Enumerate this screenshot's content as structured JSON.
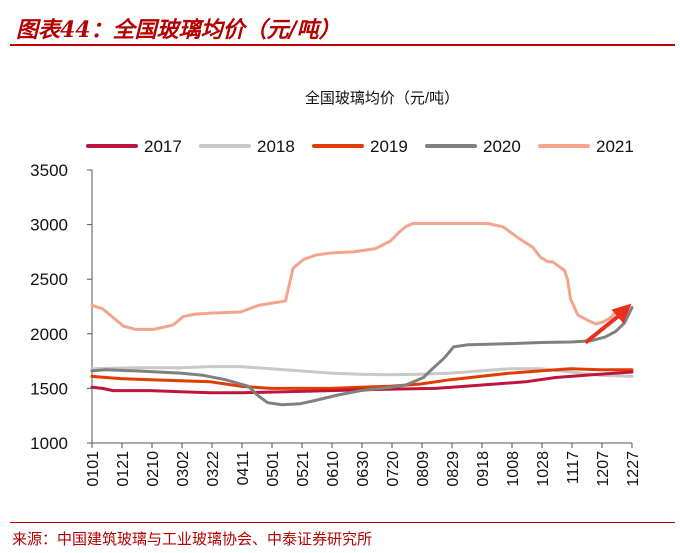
{
  "header": {
    "title": "图表44：全国玻璃均价（元/吨）"
  },
  "footer": {
    "source": "来源：中国建筑玻璃与工业玻璃协会、中泰证券研究所"
  },
  "chart_data": {
    "type": "line",
    "title": "全国玻璃均价（元/吨）",
    "ylim": [
      1000,
      3500
    ],
    "y_ticks": [
      "1000",
      "1500",
      "2000",
      "2500",
      "3000",
      "3500"
    ],
    "x_ticks": [
      "0101",
      "0121",
      "0210",
      "0302",
      "0322",
      "0411",
      "0501",
      "0521",
      "0610",
      "0630",
      "0720",
      "0809",
      "0829",
      "0918",
      "1008",
      "1028",
      "1117",
      "1207",
      "1227"
    ],
    "x_domain": [
      1,
      361
    ],
    "legend_position": "top",
    "grid": false,
    "series": [
      {
        "name": "2017",
        "color": "#c0143c",
        "points": [
          [
            1,
            1510
          ],
          [
            8,
            1500
          ],
          [
            15,
            1480
          ],
          [
            40,
            1480
          ],
          [
            60,
            1470
          ],
          [
            80,
            1460
          ],
          [
            100,
            1460
          ],
          [
            130,
            1470
          ],
          [
            160,
            1480
          ],
          [
            190,
            1490
          ],
          [
            210,
            1495
          ],
          [
            230,
            1500
          ],
          [
            250,
            1520
          ],
          [
            270,
            1540
          ],
          [
            290,
            1560
          ],
          [
            310,
            1600
          ],
          [
            330,
            1620
          ],
          [
            350,
            1640
          ],
          [
            361,
            1650
          ]
        ]
      },
      {
        "name": "2018",
        "color": "#c8c8c8",
        "points": [
          [
            1,
            1680
          ],
          [
            30,
            1690
          ],
          [
            60,
            1690
          ],
          [
            80,
            1700
          ],
          [
            100,
            1700
          ],
          [
            120,
            1680
          ],
          [
            140,
            1660
          ],
          [
            160,
            1640
          ],
          [
            180,
            1630
          ],
          [
            200,
            1625
          ],
          [
            220,
            1630
          ],
          [
            240,
            1640
          ],
          [
            260,
            1660
          ],
          [
            280,
            1680
          ],
          [
            300,
            1680
          ],
          [
            320,
            1650
          ],
          [
            340,
            1620
          ],
          [
            361,
            1610
          ]
        ]
      },
      {
        "name": "2019",
        "color": "#e03c00",
        "points": [
          [
            1,
            1610
          ],
          [
            20,
            1590
          ],
          [
            40,
            1580
          ],
          [
            60,
            1570
          ],
          [
            80,
            1560
          ],
          [
            90,
            1540
          ],
          [
            100,
            1520
          ],
          [
            120,
            1500
          ],
          [
            140,
            1500
          ],
          [
            160,
            1500
          ],
          [
            180,
            1510
          ],
          [
            200,
            1520
          ],
          [
            220,
            1540
          ],
          [
            240,
            1580
          ],
          [
            260,
            1610
          ],
          [
            280,
            1640
          ],
          [
            300,
            1660
          ],
          [
            320,
            1680
          ],
          [
            340,
            1670
          ],
          [
            361,
            1670
          ]
        ]
      },
      {
        "name": "2020",
        "color": "#808080",
        "points": [
          [
            1,
            1660
          ],
          [
            10,
            1670
          ],
          [
            30,
            1660
          ],
          [
            60,
            1640
          ],
          [
            75,
            1620
          ],
          [
            90,
            1580
          ],
          [
            105,
            1520
          ],
          [
            112,
            1430
          ],
          [
            118,
            1370
          ],
          [
            128,
            1350
          ],
          [
            140,
            1360
          ],
          [
            150,
            1390
          ],
          [
            165,
            1440
          ],
          [
            180,
            1480
          ],
          [
            200,
            1510
          ],
          [
            210,
            1530
          ],
          [
            222,
            1600
          ],
          [
            228,
            1680
          ],
          [
            236,
            1780
          ],
          [
            242,
            1880
          ],
          [
            252,
            1900
          ],
          [
            265,
            1905
          ],
          [
            280,
            1910
          ],
          [
            300,
            1920
          ],
          [
            320,
            1925
          ],
          [
            333,
            1935
          ],
          [
            343,
            1970
          ],
          [
            350,
            2020
          ],
          [
            356,
            2100
          ],
          [
            361,
            2240
          ]
        ]
      },
      {
        "name": "2021",
        "color": "#f4a48c",
        "points": [
          [
            1,
            2260
          ],
          [
            8,
            2230
          ],
          [
            15,
            2150
          ],
          [
            22,
            2070
          ],
          [
            30,
            2040
          ],
          [
            42,
            2040
          ],
          [
            55,
            2080
          ],
          [
            62,
            2160
          ],
          [
            70,
            2180
          ],
          [
            80,
            2190
          ],
          [
            100,
            2200
          ],
          [
            112,
            2260
          ],
          [
            125,
            2290
          ],
          [
            130,
            2300
          ],
          [
            135,
            2600
          ],
          [
            142,
            2680
          ],
          [
            150,
            2720
          ],
          [
            160,
            2740
          ],
          [
            175,
            2750
          ],
          [
            190,
            2780
          ],
          [
            200,
            2850
          ],
          [
            205,
            2920
          ],
          [
            210,
            2980
          ],
          [
            215,
            3010
          ],
          [
            225,
            3010
          ],
          [
            250,
            3010
          ],
          [
            265,
            3010
          ],
          [
            275,
            2980
          ],
          [
            285,
            2880
          ],
          [
            295,
            2790
          ],
          [
            300,
            2700
          ],
          [
            305,
            2660
          ],
          [
            308,
            2660
          ],
          [
            312,
            2620
          ],
          [
            316,
            2580
          ],
          [
            318,
            2500
          ],
          [
            320,
            2320
          ],
          [
            325,
            2170
          ],
          [
            332,
            2120
          ],
          [
            337,
            2090
          ],
          [
            342,
            2110
          ],
          [
            347,
            2150
          ],
          [
            350,
            2200
          ]
        ]
      }
    ]
  }
}
